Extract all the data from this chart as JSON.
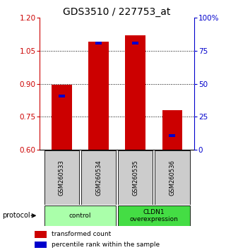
{
  "title": "GDS3510 / 227753_at",
  "samples": [
    "GSM260533",
    "GSM260534",
    "GSM260535",
    "GSM260536"
  ],
  "red_values": [
    0.895,
    1.09,
    1.12,
    0.78
  ],
  "blue_values": [
    0.845,
    1.083,
    1.083,
    0.665
  ],
  "ymin": 0.6,
  "ymax": 1.2,
  "yticks_left": [
    0.6,
    0.75,
    0.9,
    1.05,
    1.2
  ],
  "yticks_right_vals": [
    0.6,
    0.75,
    0.9,
    1.05,
    1.2
  ],
  "yticks_right_labels": [
    "0",
    "25",
    "50",
    "75",
    "100%"
  ],
  "grid_lines": [
    0.75,
    0.9,
    1.05
  ],
  "groups": [
    {
      "label": "control",
      "cols": [
        0,
        1
      ],
      "color": "#aaffaa"
    },
    {
      "label": "CLDN1\noverexpression",
      "cols": [
        2,
        3
      ],
      "color": "#44dd44"
    }
  ],
  "bar_color": "#cc0000",
  "blue_color": "#0000cc",
  "bar_width": 0.55,
  "left_tick_color": "#cc0000",
  "right_tick_color": "#0000cc",
  "title_fontsize": 10,
  "legend_red_label": "transformed count",
  "legend_blue_label": "percentile rank within the sample",
  "protocol_label": "protocol",
  "sample_box_color": "#cccccc"
}
